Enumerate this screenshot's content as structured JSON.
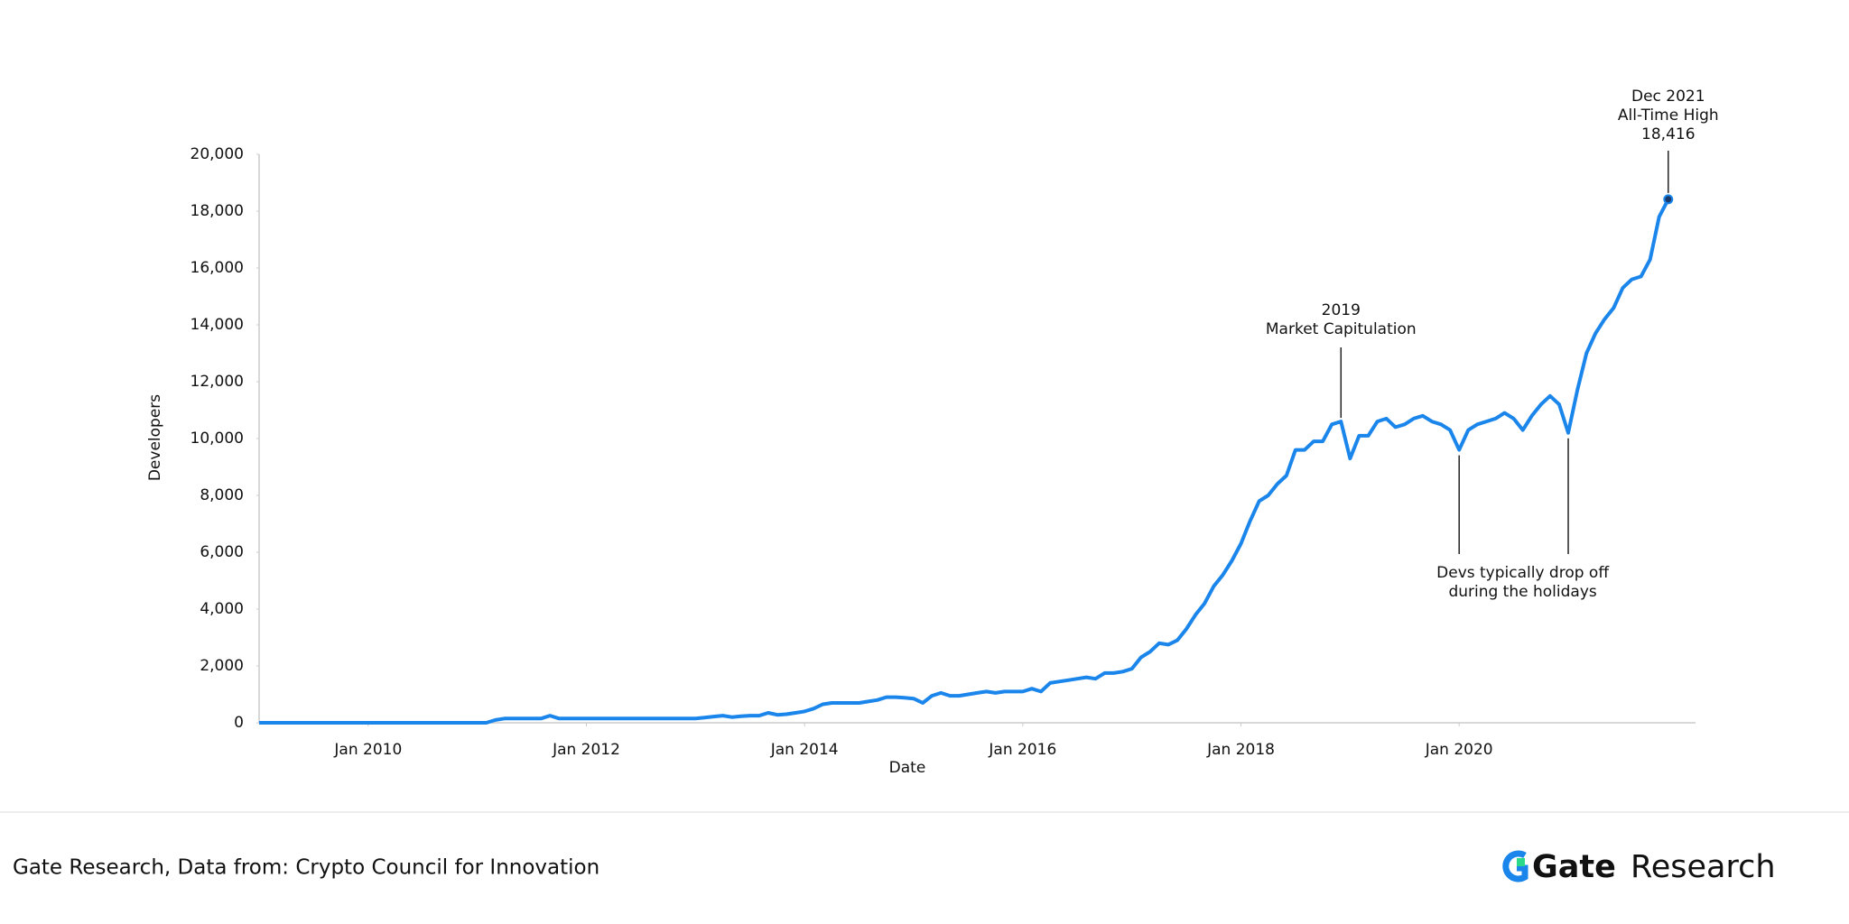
{
  "chart_data": {
    "type": "line",
    "x_label": "Date",
    "y_label": "Developers",
    "color": "#1a85ea",
    "x": [
      "2009-01",
      "2009-02",
      "2009-03",
      "2009-04",
      "2009-05",
      "2009-06",
      "2009-07",
      "2009-08",
      "2009-09",
      "2009-10",
      "2009-11",
      "2009-12",
      "2010-01",
      "2010-02",
      "2010-03",
      "2010-04",
      "2010-05",
      "2010-06",
      "2010-07",
      "2010-08",
      "2010-09",
      "2010-10",
      "2010-11",
      "2010-12",
      "2011-01",
      "2011-02",
      "2011-03",
      "2011-04",
      "2011-05",
      "2011-06",
      "2011-07",
      "2011-08",
      "2011-09",
      "2011-10",
      "2011-11",
      "2011-12",
      "2012-01",
      "2012-02",
      "2012-03",
      "2012-04",
      "2012-05",
      "2012-06",
      "2012-07",
      "2012-08",
      "2012-09",
      "2012-10",
      "2012-11",
      "2012-12",
      "2013-01",
      "2013-02",
      "2013-03",
      "2013-04",
      "2013-05",
      "2013-06",
      "2013-07",
      "2013-08",
      "2013-09",
      "2013-10",
      "2013-11",
      "2013-12",
      "2014-01",
      "2014-02",
      "2014-03",
      "2014-04",
      "2014-05",
      "2014-06",
      "2014-07",
      "2014-08",
      "2014-09",
      "2014-10",
      "2014-11",
      "2014-12",
      "2015-01",
      "2015-02",
      "2015-03",
      "2015-04",
      "2015-05",
      "2015-06",
      "2015-07",
      "2015-08",
      "2015-09",
      "2015-10",
      "2015-11",
      "2015-12",
      "2016-01",
      "2016-02",
      "2016-03",
      "2016-04",
      "2016-05",
      "2016-06",
      "2016-07",
      "2016-08",
      "2016-09",
      "2016-10",
      "2016-11",
      "2016-12",
      "2017-01",
      "2017-02",
      "2017-03",
      "2017-04",
      "2017-05",
      "2017-06",
      "2017-07",
      "2017-08",
      "2017-09",
      "2017-10",
      "2017-11",
      "2017-12",
      "2018-01",
      "2018-02",
      "2018-03",
      "2018-04",
      "2018-05",
      "2018-06",
      "2018-07",
      "2018-08",
      "2018-09",
      "2018-10",
      "2018-11",
      "2018-12",
      "2019-01",
      "2019-02",
      "2019-03",
      "2019-04",
      "2019-05",
      "2019-06",
      "2019-07",
      "2019-08",
      "2019-09",
      "2019-10",
      "2019-11",
      "2019-12",
      "2020-01",
      "2020-02",
      "2020-03",
      "2020-04",
      "2020-05",
      "2020-06",
      "2020-07",
      "2020-08",
      "2020-09",
      "2020-10",
      "2020-11",
      "2020-12",
      "2021-01",
      "2021-02",
      "2021-03",
      "2021-04",
      "2021-05",
      "2021-06",
      "2021-07",
      "2021-08",
      "2021-09",
      "2021-10",
      "2021-11",
      "2021-12"
    ],
    "values": [
      0,
      0,
      0,
      0,
      0,
      0,
      0,
      0,
      0,
      0,
      0,
      0,
      0,
      0,
      0,
      0,
      0,
      0,
      0,
      0,
      0,
      0,
      0,
      0,
      0,
      0,
      100,
      150,
      150,
      150,
      150,
      150,
      250,
      150,
      150,
      150,
      150,
      150,
      150,
      150,
      150,
      150,
      150,
      150,
      150,
      150,
      150,
      150,
      150,
      180,
      220,
      250,
      200,
      230,
      250,
      250,
      350,
      280,
      300,
      350,
      400,
      500,
      650,
      700,
      700,
      700,
      700,
      750,
      800,
      900,
      900,
      880,
      850,
      700,
      950,
      1050,
      950,
      950,
      1000,
      1050,
      1100,
      1050,
      1100,
      1100,
      1100,
      1200,
      1100,
      1400,
      1450,
      1500,
      1550,
      1600,
      1550,
      1750,
      1750,
      1800,
      1900,
      2300,
      2500,
      2800,
      2750,
      2900,
      3300,
      3800,
      4200,
      4800,
      5200,
      5700,
      6300,
      7100,
      7800,
      8000,
      8400,
      8700,
      9600,
      9600,
      9900,
      9900,
      10500,
      10600,
      9300,
      10100,
      10100,
      10600,
      10700,
      10400,
      10500,
      10700,
      10800,
      10600,
      10500,
      10300,
      9600,
      10300,
      10500,
      10600,
      10700,
      10900,
      10700,
      10300,
      10800,
      11200,
      11500,
      11200,
      10200,
      11700,
      13000,
      13700,
      14200,
      14600,
      15300,
      15600,
      15700,
      16300,
      17800,
      18416
    ],
    "xlim": [
      "2009-01",
      "2022-03"
    ],
    "xticks": [
      {
        "value": "2010-01",
        "label": "Jan 2010"
      },
      {
        "value": "2012-01",
        "label": "Jan 2012"
      },
      {
        "value": "2014-01",
        "label": "Jan 2014"
      },
      {
        "value": "2016-01",
        "label": "Jan 2016"
      },
      {
        "value": "2018-01",
        "label": "Jan 2018"
      },
      {
        "value": "2020-01",
        "label": "Jan 2020"
      }
    ],
    "ylim": [
      0,
      20000
    ],
    "yticks": [
      0,
      {
        "value": 2000,
        "label": "2,000"
      },
      {
        "value": 4000,
        "label": "4,000"
      },
      {
        "value": 6000,
        "label": "6,000"
      },
      {
        "value": 8000,
        "label": "8,000"
      },
      {
        "value": 10000,
        "label": "10,000"
      },
      {
        "value": 12000,
        "label": "12,000"
      },
      {
        "value": 14000,
        "label": "14,000"
      },
      {
        "value": 16000,
        "label": "16,000"
      },
      {
        "value": 18000,
        "label": "18,000"
      },
      {
        "value": 20000,
        "label": "20,000"
      }
    ],
    "annotations": [
      {
        "x": [
          "2021-12"
        ],
        "lines": [
          "Dec 2021",
          "All-Time High",
          "18,416"
        ]
      },
      {
        "x": [
          "2018-12"
        ],
        "lines": [
          "2019",
          "Market Capitulation"
        ]
      },
      {
        "x": [
          "2020-01",
          "2021-01"
        ],
        "lines": [
          "Devs typically drop off",
          "during the holidays"
        ]
      }
    ]
  },
  "footer": {
    "source": "Gate Research, Data from: Crypto Council for Innovation",
    "logo_bold": "Gate",
    "logo_light": "Research"
  }
}
